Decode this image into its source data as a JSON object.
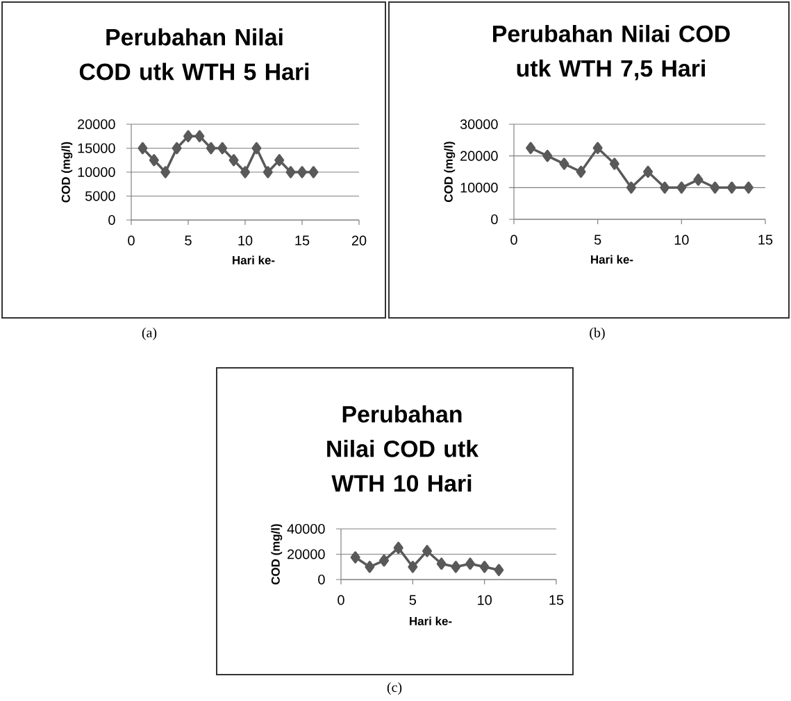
{
  "chart_data": [
    {
      "type": "line",
      "title": "Perubahan Nilai COD utk WTH 5 Hari",
      "xlabel": "Hari ke-",
      "ylabel": "COD (mg/l)",
      "color": "#595959",
      "marker": "diamond",
      "grid": "y",
      "x": [
        1,
        2,
        3,
        4,
        5,
        6,
        7,
        8,
        9,
        10,
        11,
        12,
        13,
        14,
        15,
        16
      ],
      "values": [
        15000,
        12500,
        10000,
        15000,
        17500,
        17500,
        15000,
        15000,
        12500,
        10000,
        15000,
        10000,
        12500,
        10000,
        10000,
        10000
      ],
      "xlim": [
        0,
        20
      ],
      "ylim": [
        0,
        20000
      ],
      "xticks": [
        0,
        5,
        10,
        15,
        20
      ],
      "yticks": [
        0,
        5000,
        10000,
        15000,
        20000
      ],
      "annotations": [
        "(a)"
      ]
    },
    {
      "type": "line",
      "title": "Perubahan Nilai COD utk WTH 7,5 Hari",
      "xlabel": "Hari ke-",
      "ylabel": "COD (mg/l)",
      "color": "#595959",
      "marker": "diamond",
      "grid": "y",
      "x": [
        1,
        2,
        3,
        4,
        5,
        6,
        7,
        8,
        9,
        10,
        11,
        12,
        13,
        14
      ],
      "values": [
        22500,
        20000,
        17500,
        15000,
        22500,
        17500,
        10000,
        15000,
        10000,
        10000,
        12500,
        10000,
        10000,
        10000
      ],
      "xlim": [
        0,
        15
      ],
      "ylim": [
        0,
        30000
      ],
      "xticks": [
        0,
        5,
        10,
        15
      ],
      "yticks": [
        0,
        10000,
        20000,
        30000
      ],
      "annotations": [
        "(b)"
      ]
    },
    {
      "type": "line",
      "title": "Perubahan Nilai COD utk WTH 10 Hari",
      "xlabel": "Hari ke-",
      "ylabel": "COD (mg/l)",
      "color": "#595959",
      "marker": "diamond",
      "grid": "y",
      "x": [
        1,
        2,
        3,
        4,
        5,
        6,
        7,
        8,
        9,
        10,
        11
      ],
      "values": [
        17500,
        10000,
        15000,
        25000,
        10000,
        22500,
        12500,
        10000,
        12500,
        10000,
        7500
      ],
      "xlim": [
        0,
        15
      ],
      "ylim": [
        0,
        40000
      ],
      "xticks": [
        0,
        5,
        10,
        15
      ],
      "yticks": [
        0,
        20000,
        40000
      ],
      "annotations": [
        "(c)"
      ]
    }
  ]
}
